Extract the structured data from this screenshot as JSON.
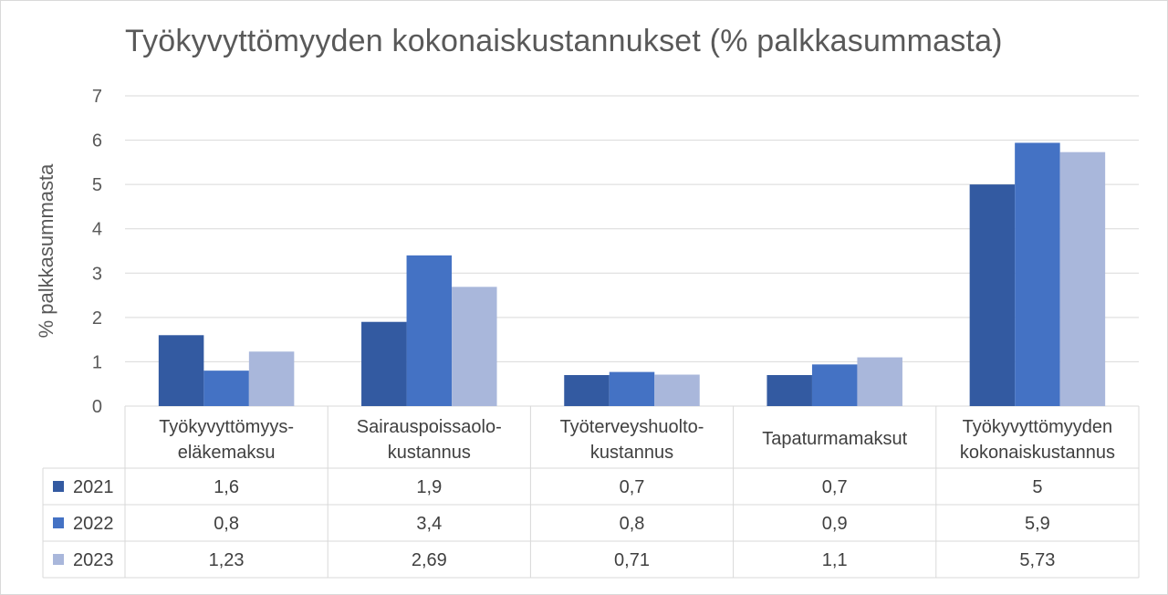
{
  "chart_data": {
    "type": "bar",
    "title": "Työkyvyttömyyden kokonaiskustannukset (% palkkasummasta)",
    "ylabel": "% palkkasummasta",
    "xlabel": "",
    "ylim": [
      0,
      7
    ],
    "yticks": [
      "0",
      "1",
      "2",
      "3",
      "4",
      "5",
      "6",
      "7"
    ],
    "grid": true,
    "legend": "data-table",
    "categories": [
      [
        "Työkyvyttömyys-",
        "eläkemaksu"
      ],
      [
        "Sairauspoissaolo-",
        "kustannus"
      ],
      [
        "Työterveyshuolto-",
        "kustannus"
      ],
      [
        "Tapaturmamaksut"
      ],
      [
        "Työkyvyttömyyden",
        "kokonaiskustannus"
      ]
    ],
    "series": [
      {
        "name": "2021",
        "color": "#335AA1",
        "values": [
          1.6,
          1.9,
          0.7,
          0.7,
          5.0
        ],
        "labels": [
          "1,6",
          "1,9",
          "0,7",
          "0,7",
          "5"
        ]
      },
      {
        "name": "2022",
        "color": "#4472C4",
        "values": [
          0.8,
          3.4,
          0.77,
          0.94,
          5.94
        ],
        "labels": [
          "0,8",
          "3,4",
          "0,8",
          "0,9",
          "5,9"
        ]
      },
      {
        "name": "2023",
        "color": "#A9B7DB",
        "values": [
          1.23,
          2.69,
          0.71,
          1.1,
          5.73
        ],
        "labels": [
          "1,23",
          "2,69",
          "0,71",
          "1,1",
          "5,73"
        ]
      }
    ]
  }
}
